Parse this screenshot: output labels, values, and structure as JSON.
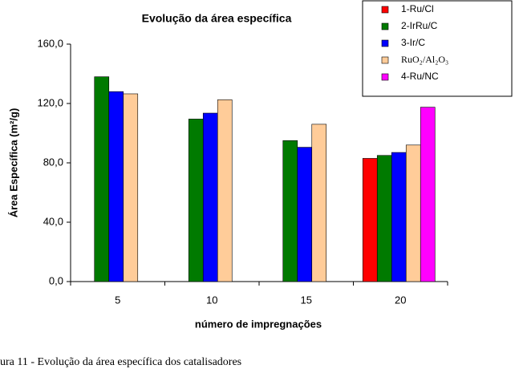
{
  "chart_data": {
    "type": "bar",
    "title": "Evolução da área específica",
    "x_label": "número de impregnações",
    "y_label": "Área Específica (m²/g)",
    "categories": [
      "5",
      "10",
      "15",
      "20"
    ],
    "series": [
      {
        "name": "1-Ru/Cl",
        "color": "#ff0000",
        "values": [
          null,
          null,
          null,
          83
        ]
      },
      {
        "name": "2-IrRu/C",
        "color": "#007a00",
        "values": [
          138,
          109.5,
          95,
          85
        ]
      },
      {
        "name": "3-Ir/C",
        "color": "#0000ff",
        "values": [
          128,
          113.5,
          90.5,
          87
        ]
      },
      {
        "name": "RuO₂/Al₂O₃",
        "color": "#ffcc99",
        "values": [
          126.5,
          122.5,
          106,
          92
        ]
      },
      {
        "name": "4-Ru/NC",
        "color": "#ff00ff",
        "values": [
          null,
          null,
          null,
          117.5
        ]
      }
    ],
    "ylim": [
      0,
      160
    ],
    "yticks": [
      {
        "value": 0,
        "label": "0,0"
      },
      {
        "value": 40,
        "label": "40,0"
      },
      {
        "value": 80,
        "label": "80,0"
      },
      {
        "value": 120,
        "label": "120,0"
      },
      {
        "value": 160,
        "label": "160,0"
      }
    ],
    "grid": false,
    "legend": "top-right"
  },
  "caption": "ura 11 - Evolução da área específica dos catalisadores"
}
